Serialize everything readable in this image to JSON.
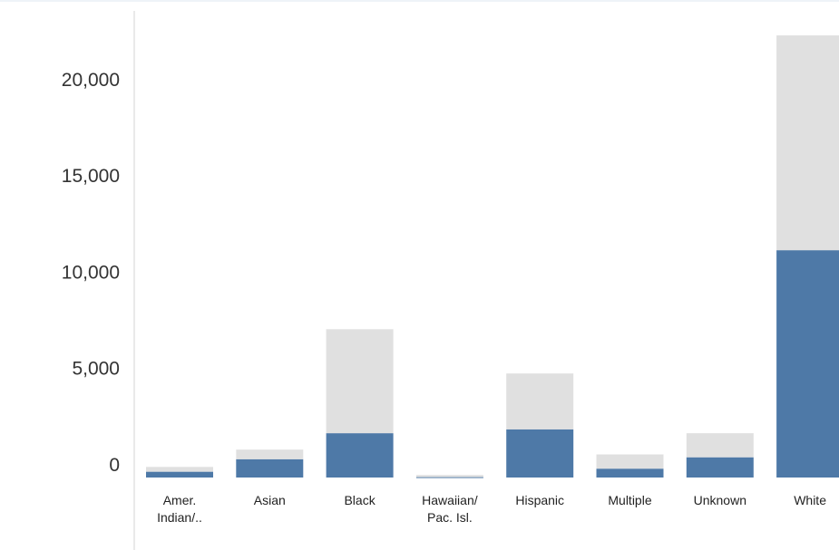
{
  "chart_data": {
    "type": "bar",
    "stacked": true,
    "title": "",
    "xlabel": "",
    "ylabel": "",
    "ylim": [
      0,
      23000
    ],
    "yticks": [
      0,
      5000,
      10000,
      15000,
      20000
    ],
    "ytick_labels": [
      "0",
      "5,000",
      "10,000",
      "15,000",
      "20,000"
    ],
    "grid": false,
    "categories": [
      [
        "Amer.",
        "Indian/.."
      ],
      [
        "Asian"
      ],
      [
        "Black"
      ],
      [
        "Hawaiian/",
        "Pac. Isl."
      ],
      [
        "Hispanic"
      ],
      [
        "Multiple"
      ],
      [
        "Unknown"
      ],
      [
        "White"
      ]
    ],
    "series": [
      {
        "color": "#4e79a7",
        "values": [
          300,
          950,
          2300,
          20,
          2500,
          460,
          1050,
          11800
        ]
      },
      {
        "color": "#e0e0e0",
        "values": [
          250,
          500,
          5400,
          110,
          2900,
          740,
          1250,
          11150
        ]
      }
    ]
  }
}
